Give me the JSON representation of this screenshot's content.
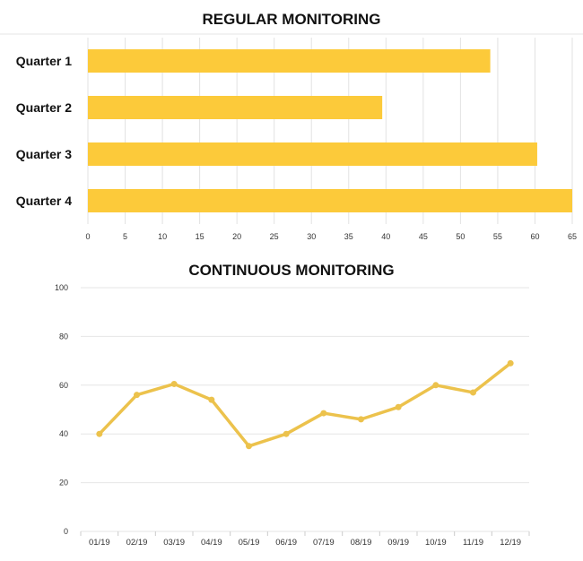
{
  "chart_data": [
    {
      "type": "bar",
      "orientation": "horizontal",
      "title": "REGULAR MONITORING",
      "categories": [
        "Quarter 1",
        "Quarter 2",
        "Quarter 3",
        "Quarter 4"
      ],
      "values": [
        54,
        39.5,
        60.3,
        65
      ],
      "xlim": [
        0,
        65
      ],
      "xticks": [
        "0",
        "5",
        "10",
        "15",
        "20",
        "25",
        "30",
        "35",
        "40",
        "45",
        "50",
        "55",
        "60",
        "65"
      ],
      "grid": "vertical",
      "color": "#fcca3a"
    },
    {
      "type": "line",
      "title": "CONTINUOUS MONITORING",
      "x": [
        "01/19",
        "02/19",
        "03/19",
        "04/19",
        "05/19",
        "06/19",
        "07/19",
        "08/19",
        "09/19",
        "10/19",
        "11/19",
        "12/19"
      ],
      "values": [
        40,
        56,
        60.5,
        54,
        35,
        40,
        48.5,
        46,
        51,
        60,
        57,
        69
      ],
      "ylim": [
        0,
        100
      ],
      "yticks": [
        "0",
        "20",
        "40",
        "60",
        "80",
        "100"
      ],
      "grid": "horizontal",
      "color": "#ecc24c"
    }
  ]
}
